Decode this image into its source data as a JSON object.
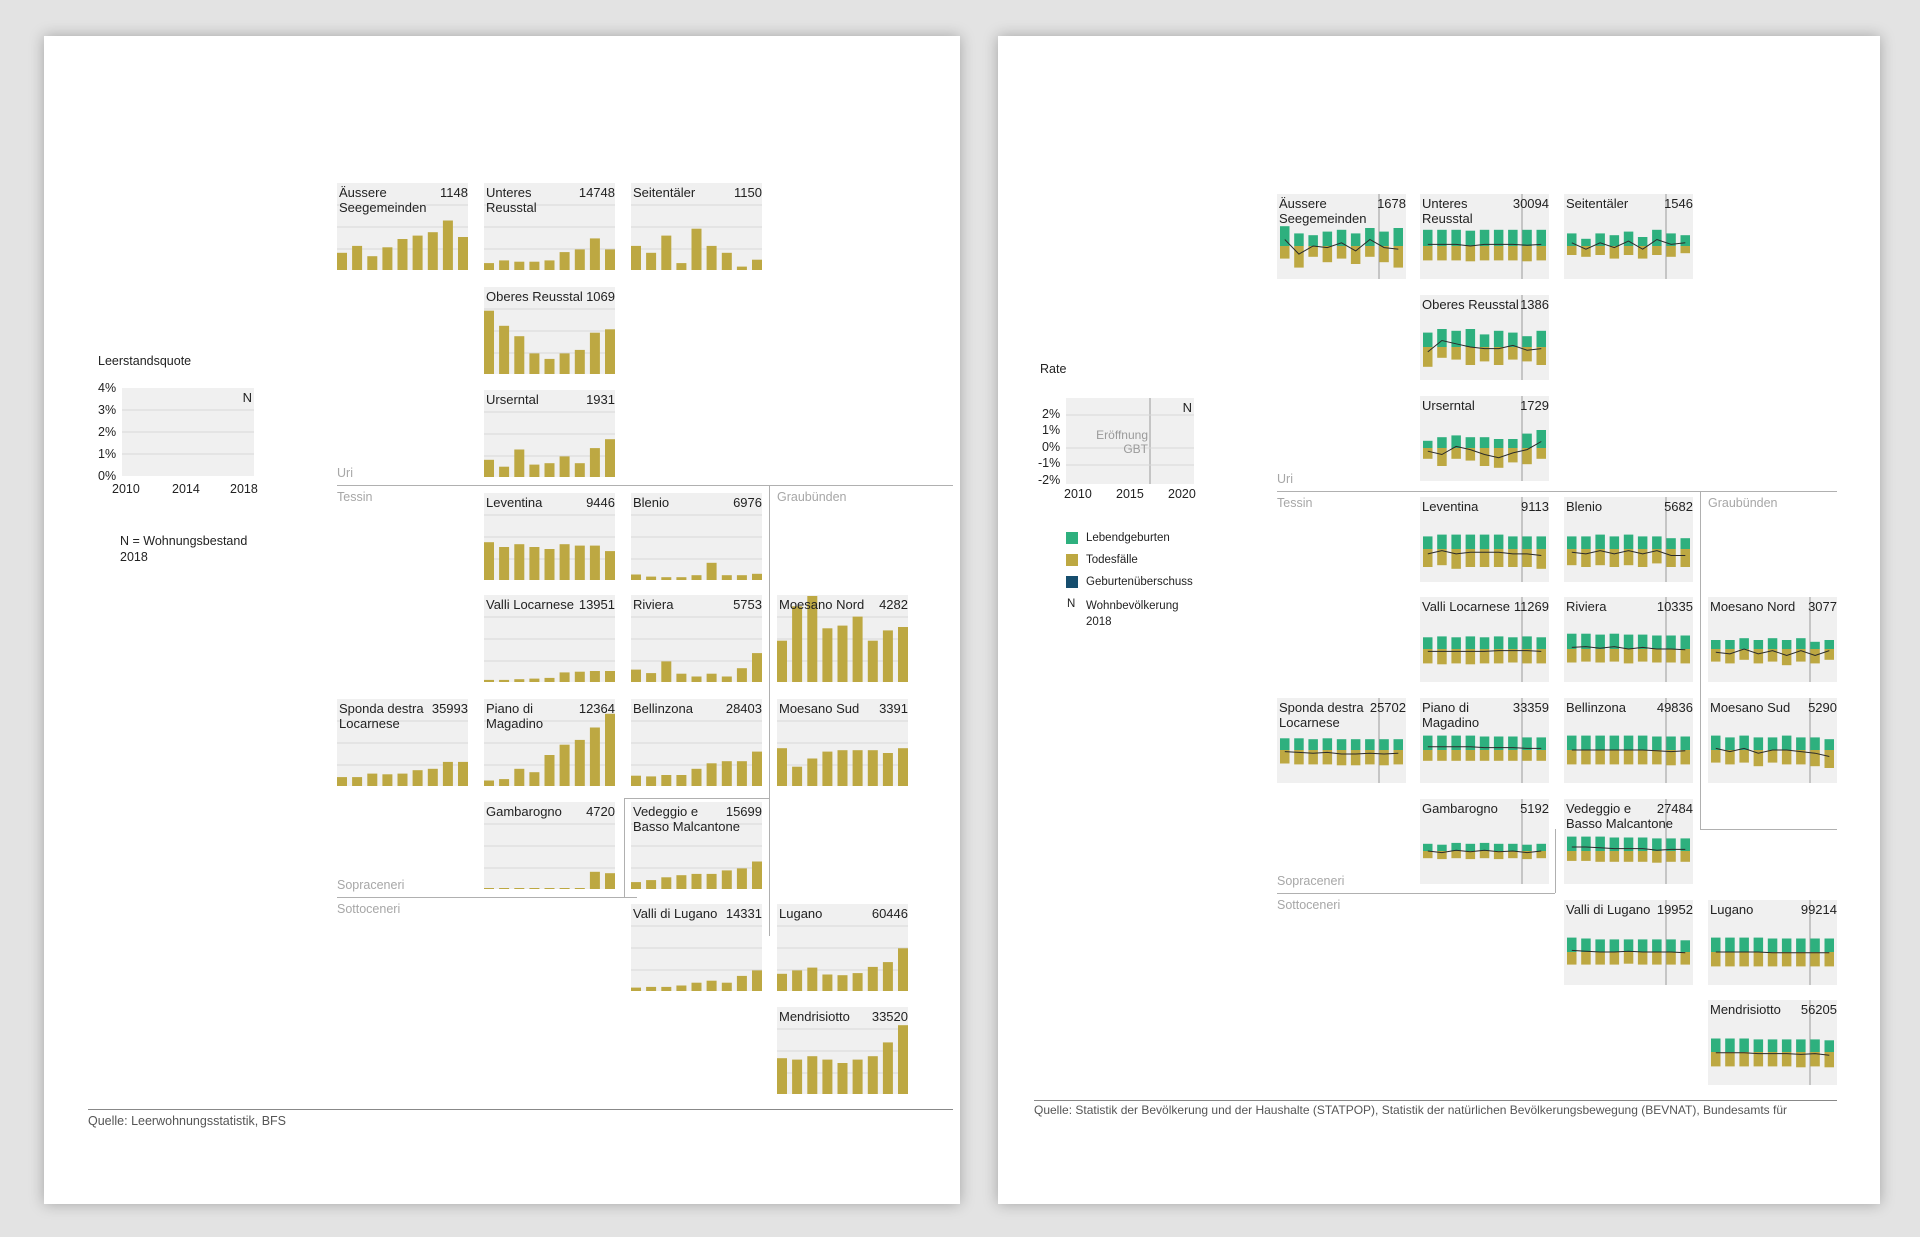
{
  "colors": {
    "gold": "#bda842",
    "green": "#2eb07e",
    "navy": "#164e6e",
    "tile_bg": "#f0f0f0",
    "grid": "#d8d8d8"
  },
  "left": {
    "legend": {
      "title": "Leerstandsquote",
      "yticks": [
        "4%",
        "3%",
        "2%",
        "1%",
        "0%"
      ],
      "xticks": [
        "2010",
        "2014",
        "2018"
      ],
      "n_marker": "N",
      "n_note": "N = Wohnungsbestand\n2018"
    },
    "regions": {
      "uri": "Uri",
      "tessin": "Tessin",
      "graubuenden": "Graubünden",
      "sopraceneri": "Sopraceneri",
      "sottoceneri": "Sottoceneri"
    },
    "source": "Quelle: Leerwohnungsstatistik, BFS",
    "tiles": [
      {
        "name": "Äussere\nSeegemeinden",
        "value": "1148",
        "bars": [
          0.25,
          0.35,
          0.2,
          0.33,
          0.45,
          0.5,
          0.55,
          0.72,
          0.48
        ]
      },
      {
        "name": "Unteres\nReusstal",
        "value": "14748",
        "bars": [
          0.1,
          0.14,
          0.12,
          0.12,
          0.14,
          0.26,
          0.3,
          0.46,
          0.3
        ]
      },
      {
        "name": "Seitentäler",
        "value": "1150",
        "bars": [
          0.35,
          0.25,
          0.5,
          0.1,
          0.6,
          0.35,
          0.25,
          0.05,
          0.15
        ]
      },
      {
        "name": "Oberes Reusstal",
        "value": "1069",
        "bars": [
          0.92,
          0.7,
          0.55,
          0.3,
          0.22,
          0.3,
          0.35,
          0.6,
          0.65
        ]
      },
      {
        "name": "Urserntal",
        "value": "1931",
        "bars": [
          0.25,
          0.15,
          0.4,
          0.18,
          0.2,
          0.3,
          0.2,
          0.42,
          0.55
        ]
      },
      {
        "name": "Leventina",
        "value": "9446",
        "bars": [
          0.55,
          0.48,
          0.52,
          0.48,
          0.45,
          0.52,
          0.5,
          0.5,
          0.42
        ]
      },
      {
        "name": "Blenio",
        "value": "6976",
        "bars": [
          0.08,
          0.05,
          0.04,
          0.04,
          0.07,
          0.25,
          0.07,
          0.07,
          0.09
        ]
      },
      {
        "name": "Valli Locarnese",
        "value": "13951",
        "bars": [
          0.03,
          0.03,
          0.04,
          0.05,
          0.06,
          0.14,
          0.15,
          0.16,
          0.16
        ]
      },
      {
        "name": "Riviera",
        "value": "5753",
        "bars": [
          0.18,
          0.13,
          0.3,
          0.12,
          0.08,
          0.12,
          0.08,
          0.2,
          0.42
        ]
      },
      {
        "name": "Moesano Nord",
        "value": "4282",
        "bars": [
          0.6,
          1.1,
          1.25,
          0.78,
          0.82,
          0.95,
          0.6,
          0.75,
          0.8
        ]
      },
      {
        "name": "Sponda destra\nLocarnese",
        "value": "35993",
        "bars": [
          0.13,
          0.13,
          0.18,
          0.17,
          0.18,
          0.23,
          0.25,
          0.35,
          0.35
        ]
      },
      {
        "name": "Piano di\nMagadino",
        "value": "12364",
        "bars": [
          0.08,
          0.1,
          0.25,
          0.2,
          0.45,
          0.6,
          0.67,
          0.85,
          1.05
        ]
      },
      {
        "name": "Bellinzona",
        "value": "28403",
        "bars": [
          0.15,
          0.14,
          0.16,
          0.16,
          0.25,
          0.33,
          0.36,
          0.36,
          0.5
        ]
      },
      {
        "name": "Moesano Sud",
        "value": "3391",
        "bars": [
          0.55,
          0.28,
          0.4,
          0.5,
          0.52,
          0.52,
          0.52,
          0.48,
          0.55
        ]
      },
      {
        "name": "Gambarogno",
        "value": "4720",
        "bars": [
          0.01,
          0.01,
          0.01,
          0.01,
          0.01,
          0.01,
          0.01,
          0.25,
          0.23
        ]
      },
      {
        "name": "Vedeggio e\nBasso Malcantone",
        "value": "15699",
        "bars": [
          0.1,
          0.13,
          0.17,
          0.2,
          0.22,
          0.22,
          0.27,
          0.3,
          0.4
        ]
      },
      {
        "name": "Valli di Lugano",
        "value": "14331",
        "bars": [
          0.05,
          0.06,
          0.06,
          0.08,
          0.12,
          0.15,
          0.12,
          0.22,
          0.3
        ]
      },
      {
        "name": "Lugano",
        "value": "60446",
        "bars": [
          0.25,
          0.3,
          0.34,
          0.24,
          0.23,
          0.26,
          0.35,
          0.42,
          0.62
        ]
      },
      {
        "name": "Mendrisiotto",
        "value": "33520",
        "bars": [
          0.52,
          0.5,
          0.55,
          0.5,
          0.45,
          0.5,
          0.55,
          0.75,
          1.0
        ]
      }
    ]
  },
  "right": {
    "legend": {
      "title": "Rate",
      "yticks": [
        "2%",
        "1%",
        "0%",
        "-1%",
        "-2%"
      ],
      "xticks": [
        "2010",
        "2015",
        "2020"
      ],
      "n_marker": "N",
      "annotation": "Eröffnung\nGBT",
      "items": [
        {
          "label": "Lebendgeburten",
          "color": "#2eb07e"
        },
        {
          "label": "Todesfälle",
          "color": "#bda842"
        },
        {
          "label": "Geburtenüberschuss",
          "color": "#164e6e"
        },
        {
          "label": "Wohnbevölkerung\n2018",
          "marker": "N"
        }
      ]
    },
    "regions": {
      "uri": "Uri",
      "tessin": "Tessin",
      "graubuenden": "Graubünden",
      "sopraceneri": "Sopraceneri",
      "sottoceneri": "Sottoceneri"
    },
    "source": "Quelle: Statistik der Bevölkerung und der Haushalte (STATPOP), Statistik der natürlichen Bevölkerungsbewegung (BEVNAT), Bundesamts für",
    "tiles": [
      {
        "name": "Äussere\nSeegemeinden",
        "value": "1678",
        "births": [
          1.1,
          0.7,
          0.6,
          0.8,
          0.9,
          0.7,
          1.0,
          0.8,
          1.0
        ],
        "deaths": [
          0.7,
          1.2,
          0.6,
          0.9,
          0.7,
          1.0,
          0.6,
          0.9,
          1.2
        ]
      },
      {
        "name": "Unteres\nReusstal",
        "value": "30094",
        "births": [
          0.9,
          0.9,
          0.9,
          0.85,
          0.9,
          0.9,
          0.9,
          0.9,
          0.9
        ],
        "deaths": [
          0.8,
          0.8,
          0.8,
          0.85,
          0.8,
          0.8,
          0.8,
          0.85,
          0.8
        ]
      },
      {
        "name": "Seitentäler",
        "value": "1546",
        "births": [
          0.7,
          0.4,
          0.7,
          0.6,
          0.8,
          0.5,
          0.9,
          0.7,
          0.6
        ],
        "deaths": [
          0.5,
          0.6,
          0.5,
          0.7,
          0.5,
          0.7,
          0.5,
          0.6,
          0.4
        ]
      },
      {
        "name": "Oberes Reusstal",
        "value": "1386",
        "births": [
          0.8,
          1.0,
          0.9,
          1.0,
          0.7,
          0.9,
          0.8,
          0.6,
          0.9
        ],
        "deaths": [
          1.1,
          0.6,
          0.7,
          1.0,
          0.8,
          1.0,
          0.7,
          0.8,
          1.0
        ]
      },
      {
        "name": "Urserntal",
        "value": "1729",
        "births": [
          0.4,
          0.6,
          0.7,
          0.6,
          0.6,
          0.5,
          0.5,
          0.8,
          1.0
        ],
        "deaths": [
          0.6,
          1.0,
          0.6,
          0.7,
          1.0,
          1.1,
          0.8,
          0.9,
          0.6
        ]
      },
      {
        "name": "Leventina",
        "value": "9113",
        "births": [
          0.7,
          0.8,
          0.8,
          0.8,
          0.8,
          0.8,
          0.7,
          0.7,
          0.7
        ],
        "deaths": [
          1.0,
          0.9,
          1.1,
          1.0,
          1.0,
          1.0,
          1.0,
          1.0,
          1.1
        ]
      },
      {
        "name": "Blenio",
        "value": "5682",
        "births": [
          0.7,
          0.7,
          0.8,
          0.7,
          0.8,
          0.7,
          0.7,
          0.6,
          0.6
        ],
        "deaths": [
          0.9,
          1.0,
          0.9,
          1.0,
          0.9,
          1.0,
          0.8,
          1.0,
          1.0
        ]
      },
      {
        "name": "Valli Locarnese",
        "value": "11269",
        "births": [
          0.65,
          0.7,
          0.65,
          0.7,
          0.65,
          0.7,
          0.65,
          0.7,
          0.65
        ],
        "deaths": [
          0.8,
          0.85,
          0.8,
          0.85,
          0.8,
          0.8,
          0.75,
          0.8,
          0.8
        ]
      },
      {
        "name": "Riviera",
        "value": "10335",
        "births": [
          0.85,
          0.85,
          0.8,
          0.85,
          0.8,
          0.8,
          0.75,
          0.75,
          0.75
        ],
        "deaths": [
          0.75,
          0.7,
          0.75,
          0.7,
          0.8,
          0.7,
          0.75,
          0.75,
          0.8
        ]
      },
      {
        "name": "Moesano Nord",
        "value": "3077",
        "births": [
          0.5,
          0.5,
          0.6,
          0.5,
          0.6,
          0.5,
          0.6,
          0.4,
          0.5
        ],
        "deaths": [
          0.7,
          0.8,
          0.6,
          0.8,
          0.7,
          0.9,
          0.7,
          0.8,
          0.6
        ]
      },
      {
        "name": "Sponda destra\nLocarnese",
        "value": "25702",
        "births": [
          0.65,
          0.65,
          0.6,
          0.65,
          0.6,
          0.6,
          0.6,
          0.6,
          0.6
        ],
        "deaths": [
          0.75,
          0.8,
          0.8,
          0.8,
          0.85,
          0.85,
          0.8,
          0.85,
          0.8
        ]
      },
      {
        "name": "Piano di\nMagadino",
        "value": "33359",
        "births": [
          0.8,
          0.8,
          0.8,
          0.8,
          0.75,
          0.75,
          0.75,
          0.7,
          0.7
        ],
        "deaths": [
          0.6,
          0.6,
          0.6,
          0.6,
          0.6,
          0.6,
          0.6,
          0.6,
          0.6
        ]
      },
      {
        "name": "Bellinzona",
        "value": "49836",
        "births": [
          0.8,
          0.8,
          0.8,
          0.8,
          0.8,
          0.8,
          0.75,
          0.75,
          0.75
        ],
        "deaths": [
          0.8,
          0.8,
          0.8,
          0.8,
          0.8,
          0.8,
          0.8,
          0.85,
          0.8
        ]
      },
      {
        "name": "Moesano Sud",
        "value": "5290",
        "births": [
          0.8,
          0.7,
          0.8,
          0.7,
          0.7,
          0.8,
          0.7,
          0.7,
          0.6
        ],
        "deaths": [
          0.7,
          0.8,
          0.7,
          0.9,
          0.7,
          0.8,
          0.8,
          0.9,
          1.0
        ]
      },
      {
        "name": "Gambarogno",
        "value": "5192",
        "births": [
          0.4,
          0.35,
          0.45,
          0.4,
          0.45,
          0.4,
          0.4,
          0.35,
          0.4
        ],
        "deaths": [
          0.4,
          0.45,
          0.4,
          0.45,
          0.4,
          0.45,
          0.4,
          0.45,
          0.4
        ]
      },
      {
        "name": "Vedeggio e\nBasso Malcantone",
        "value": "27484",
        "births": [
          0.8,
          0.8,
          0.8,
          0.75,
          0.75,
          0.75,
          0.7,
          0.7,
          0.7
        ],
        "deaths": [
          0.55,
          0.55,
          0.6,
          0.6,
          0.6,
          0.6,
          0.65,
          0.6,
          0.6
        ]
      },
      {
        "name": "Valli di Lugano",
        "value": "19952",
        "births": [
          0.8,
          0.75,
          0.7,
          0.7,
          0.7,
          0.7,
          0.7,
          0.7,
          0.65
        ],
        "deaths": [
          0.7,
          0.7,
          0.7,
          0.7,
          0.65,
          0.7,
          0.7,
          0.7,
          0.7
        ]
      },
      {
        "name": "Lugano",
        "value": "99214",
        "births": [
          0.8,
          0.8,
          0.8,
          0.8,
          0.75,
          0.75,
          0.75,
          0.75,
          0.75
        ],
        "deaths": [
          0.8,
          0.8,
          0.8,
          0.8,
          0.8,
          0.8,
          0.8,
          0.8,
          0.8
        ]
      },
      {
        "name": "Mendrisiotto",
        "value": "56205",
        "births": [
          0.75,
          0.75,
          0.75,
          0.7,
          0.7,
          0.7,
          0.7,
          0.7,
          0.65
        ],
        "deaths": [
          0.8,
          0.8,
          0.8,
          0.8,
          0.8,
          0.8,
          0.85,
          0.8,
          0.85
        ]
      }
    ]
  }
}
